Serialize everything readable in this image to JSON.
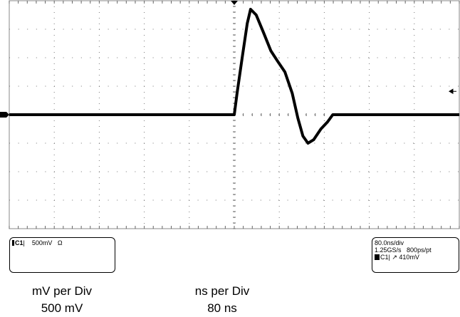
{
  "chart_data": {
    "type": "line",
    "title": "",
    "xlabel": "",
    "ylabel": "",
    "x_unit": "ns",
    "y_unit": "V",
    "xlim": [
      -400,
      400
    ],
    "ylim": [
      -2,
      2
    ],
    "x_divisions": 10,
    "y_divisions": 8,
    "grid": true,
    "trace_color": "#000000",
    "x": [
      -400,
      -200,
      0,
      5,
      14,
      23,
      29,
      39,
      52,
      65,
      77,
      90,
      103,
      113,
      122,
      131,
      141,
      154,
      166,
      175,
      300,
      400
    ],
    "y": [
      0,
      0,
      0,
      0.375,
      1.0,
      1.6,
      1.85,
      1.75,
      1.44,
      1.12,
      0.94,
      0.75,
      0.375,
      -0.06,
      -0.375,
      -0.5,
      -0.44,
      -0.25,
      -0.125,
      0,
      0,
      0
    ],
    "trigger_level_v": 0.41
  },
  "left_box": {
    "channel": "C1",
    "scale": "500mV",
    "coupling": "Ω"
  },
  "right_box": {
    "timebase": "80.0ns/div",
    "sample_rate": "1.25GS/s",
    "resolution": "800ps/pt",
    "trigger_channel": "C1",
    "trigger_slope": "↗",
    "trigger_level": "410mV"
  },
  "captions": {
    "volt_label": "mV per Div",
    "volt_value": "500 mV",
    "time_label": "ns per Div",
    "time_value": "80 ns"
  }
}
